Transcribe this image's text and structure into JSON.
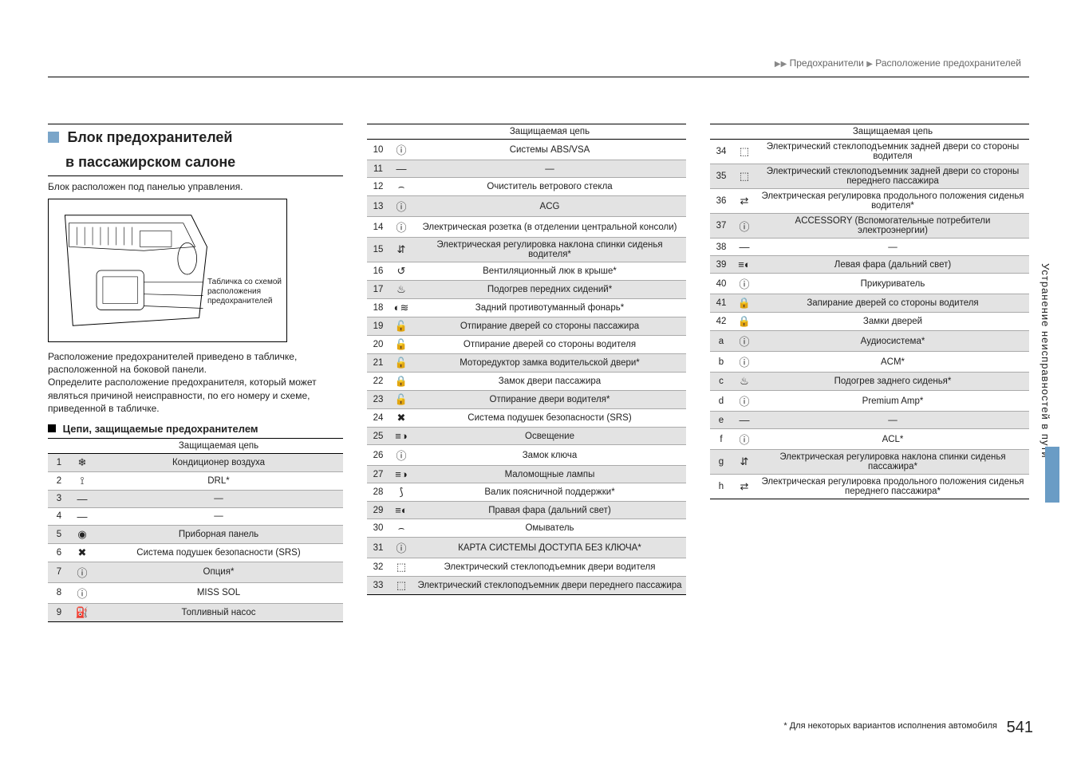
{
  "breadcrumb": {
    "a": "Предохранители",
    "b": "Расположение предохранителей"
  },
  "heading": {
    "line1": "Блок предохранителей",
    "line2": "в пассажирском салоне"
  },
  "intro": "Блок расположен под панелью управления.",
  "diagram_label": "Табличка со схемой\nрасположения\nпредохранителей",
  "para": "Расположение предохранителей приведено в табличке, расположенной на боковой панели.\nОпределите расположение предохранителя, который может являться причиной неисправности, по его номеру и схеме, приведенной в табличке.",
  "subhead": "Цепи, защищаемые предохранителем",
  "col_header": "Защищаемая цепь",
  "side_label": "Устранение неисправностей в пути",
  "footnote": "* Для некоторых вариантов исполнения автомобиля",
  "pagenum": "541",
  "table1": [
    {
      "n": "1",
      "i": "❄",
      "d": "Кондиционер воздуха",
      "s": true
    },
    {
      "n": "2",
      "i": "⟟",
      "d": "DRL*",
      "s": false
    },
    {
      "n": "3",
      "i": "—",
      "d": "—",
      "s": true
    },
    {
      "n": "4",
      "i": "—",
      "d": "—",
      "s": false
    },
    {
      "n": "5",
      "i": "◉",
      "d": "Приборная панель",
      "s": true
    },
    {
      "n": "6",
      "i": "✖",
      "d": "Система подушек безопасности (SRS)",
      "s": false
    },
    {
      "n": "7",
      "i": "ⓘ",
      "d": "Опция*",
      "s": true
    },
    {
      "n": "8",
      "i": "ⓘ",
      "d": "MISS SOL",
      "s": false
    },
    {
      "n": "9",
      "i": "⛽",
      "d": "Топливный насос",
      "s": true
    }
  ],
  "table2": [
    {
      "n": "10",
      "i": "ⓘ",
      "d": "Системы ABS/VSA",
      "s": false
    },
    {
      "n": "11",
      "i": "—",
      "d": "—",
      "s": true
    },
    {
      "n": "12",
      "i": "⌢",
      "d": "Очиститель ветрового стекла",
      "s": false
    },
    {
      "n": "13",
      "i": "ⓘ",
      "d": "ACG",
      "s": true
    },
    {
      "n": "14",
      "i": "ⓘ",
      "d": "Электрическая розетка (в отделении центральной консоли)",
      "s": false
    },
    {
      "n": "15",
      "i": "⇵",
      "d": "Электрическая регулировка наклона спинки сиденья водителя*",
      "s": true
    },
    {
      "n": "16",
      "i": "↺",
      "d": "Вентиляционный люк в крыше*",
      "s": false
    },
    {
      "n": "17",
      "i": "♨",
      "d": "Подогрев передних сидений*",
      "s": true
    },
    {
      "n": "18",
      "i": "◐≋",
      "d": "Задний противотуманный фонарь*",
      "s": false
    },
    {
      "n": "19",
      "i": "🔓",
      "d": "Отпирание дверей со стороны пассажира",
      "s": true
    },
    {
      "n": "20",
      "i": "🔓",
      "d": "Отпирание дверей со стороны водителя",
      "s": false
    },
    {
      "n": "21",
      "i": "🔓",
      "d": "Моторедуктор замка водительской двери*",
      "s": true
    },
    {
      "n": "22",
      "i": "🔒",
      "d": "Замок двери пассажира",
      "s": false
    },
    {
      "n": "23",
      "i": "🔓",
      "d": "Отпирание двери водителя*",
      "s": true
    },
    {
      "n": "24",
      "i": "✖",
      "d": "Система подушек безопасности (SRS)",
      "s": false
    },
    {
      "n": "25",
      "i": "≡◑",
      "d": "Освещение",
      "s": true
    },
    {
      "n": "26",
      "i": "ⓘ",
      "d": "Замок ключа",
      "s": false
    },
    {
      "n": "27",
      "i": "≡◑",
      "d": "Маломощные лампы",
      "s": true
    },
    {
      "n": "28",
      "i": "⟆",
      "d": "Валик поясничной поддержки*",
      "s": false
    },
    {
      "n": "29",
      "i": "≡◐",
      "d": "Правая фара (дальний свет)",
      "s": true
    },
    {
      "n": "30",
      "i": "⌢",
      "d": "Омыватель",
      "s": false
    },
    {
      "n": "31",
      "i": "ⓘ",
      "d": "КАРТА СИСТЕМЫ ДОСТУПА БЕЗ КЛЮЧА*",
      "s": true
    },
    {
      "n": "32",
      "i": "⬚",
      "d": "Электрический стеклоподъемник двери водителя",
      "s": false
    },
    {
      "n": "33",
      "i": "⬚",
      "d": "Электрический стеклоподъемник двери переднего пассажира",
      "s": true
    }
  ],
  "table3": [
    {
      "n": "34",
      "i": "⬚",
      "d": "Электрический стеклоподъемник задней двери со стороны водителя",
      "s": false
    },
    {
      "n": "35",
      "i": "⬚",
      "d": "Электрический стеклоподъемник задней двери со стороны переднего пассажира",
      "s": true
    },
    {
      "n": "36",
      "i": "⇄",
      "d": "Электрическая регулировка продольного положения сиденья водителя*",
      "s": false
    },
    {
      "n": "37",
      "i": "ⓘ",
      "d": "ACCESSORY (Вспомогательные потребители электроэнергии)",
      "s": true
    },
    {
      "n": "38",
      "i": "—",
      "d": "—",
      "s": false
    },
    {
      "n": "39",
      "i": "≡◐",
      "d": "Левая фара (дальний свет)",
      "s": true
    },
    {
      "n": "40",
      "i": "ⓘ",
      "d": "Прикуриватель",
      "s": false
    },
    {
      "n": "41",
      "i": "🔒",
      "d": "Запирание дверей со стороны водителя",
      "s": true
    },
    {
      "n": "42",
      "i": "🔒",
      "d": "Замки дверей",
      "s": false
    },
    {
      "n": "a",
      "i": "ⓘ",
      "d": "Аудиосистема*",
      "s": true
    },
    {
      "n": "b",
      "i": "ⓘ",
      "d": "ACM*",
      "s": false
    },
    {
      "n": "c",
      "i": "♨",
      "d": "Подогрев заднего сиденья*",
      "s": true
    },
    {
      "n": "d",
      "i": "ⓘ",
      "d": "Premium Amp*",
      "s": false
    },
    {
      "n": "e",
      "i": "—",
      "d": "—",
      "s": true
    },
    {
      "n": "f",
      "i": "ⓘ",
      "d": "ACL*",
      "s": false
    },
    {
      "n": "g",
      "i": "⇵",
      "d": "Электрическая регулировка наклона спинки сиденья пассажира*",
      "s": true
    },
    {
      "n": "h",
      "i": "⇄",
      "d": "Электрическая регулировка продольного положения сиденья переднего пассажира*",
      "s": false
    }
  ]
}
